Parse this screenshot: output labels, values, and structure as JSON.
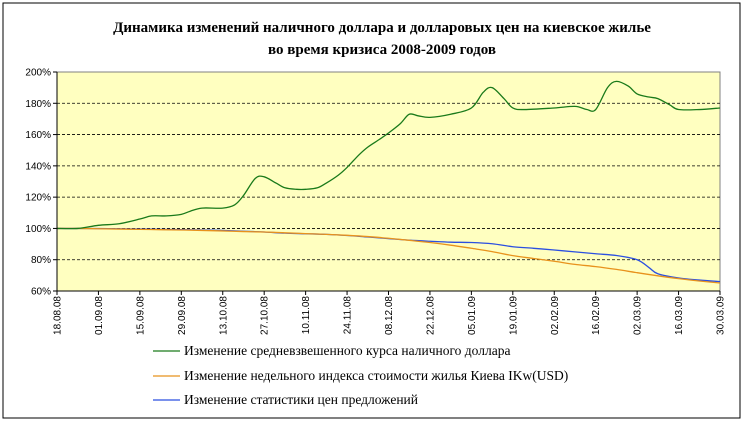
{
  "chart_data": {
    "type": "line",
    "title_line1": "Динамика изменений наличного доллара и долларовых цен на киевское жилье",
    "title_line2": "во время  кризиса 2008-2009 годов",
    "ylim": [
      0.6,
      2.0
    ],
    "y_ticks": [
      0.6,
      0.8,
      1.0,
      1.2,
      1.4,
      1.6,
      1.8,
      2.0
    ],
    "y_tick_labels": [
      "60%",
      "80%",
      "100%",
      "120%",
      "140%",
      "160%",
      "180%",
      "200%"
    ],
    "x_tick_labels": [
      "18.08.08",
      "01.09.08",
      "15.09.08",
      "29.09.08",
      "13.10.08",
      "27.10.08",
      "10.11.08",
      "24.11.08",
      "08.12.08",
      "22.12.08",
      "05.01.09",
      "19.01.09",
      "02.02.09",
      "16.02.09",
      "02.03.09",
      "16.03.09",
      "30.03.09"
    ],
    "grid": "horizontal dashed",
    "plot_background": "#ffffc0",
    "legend_position": "bottom",
    "series": [
      {
        "name": "Изменение средневзвешенного  курса наличного доллара",
        "color": "#1a7a1a",
        "x": [
          "2008-08-18",
          "2008-08-25",
          "2008-09-01",
          "2008-09-08",
          "2008-09-15",
          "2008-09-19",
          "2008-09-24",
          "2008-09-29",
          "2008-10-02",
          "2008-10-06",
          "2008-10-13",
          "2008-10-17",
          "2008-10-20",
          "2008-10-24",
          "2008-10-27",
          "2008-10-31",
          "2008-11-03",
          "2008-11-07",
          "2008-11-10",
          "2008-11-14",
          "2008-11-17",
          "2008-11-21",
          "2008-11-24",
          "2008-11-28",
          "2008-12-01",
          "2008-12-05",
          "2008-12-08",
          "2008-12-12",
          "2008-12-15",
          "2008-12-18",
          "2008-12-22",
          "2008-12-29",
          "2009-01-05",
          "2009-01-09",
          "2009-01-12",
          "2009-01-16",
          "2009-01-19",
          "2009-01-23",
          "2009-02-02",
          "2009-02-09",
          "2009-02-13",
          "2009-02-16",
          "2009-02-20",
          "2009-02-23",
          "2009-02-27",
          "2009-03-02",
          "2009-03-06",
          "2009-03-09",
          "2009-03-13",
          "2009-03-16",
          "2009-03-23",
          "2009-03-30"
        ],
        "values": [
          1.0,
          1.0,
          1.02,
          1.03,
          1.06,
          1.08,
          1.08,
          1.09,
          1.11,
          1.13,
          1.13,
          1.15,
          1.21,
          1.32,
          1.33,
          1.29,
          1.26,
          1.25,
          1.25,
          1.26,
          1.29,
          1.34,
          1.39,
          1.47,
          1.52,
          1.57,
          1.61,
          1.67,
          1.73,
          1.72,
          1.71,
          1.73,
          1.77,
          1.87,
          1.9,
          1.83,
          1.77,
          1.76,
          1.77,
          1.78,
          1.76,
          1.76,
          1.9,
          1.94,
          1.91,
          1.86,
          1.84,
          1.83,
          1.79,
          1.76,
          1.76,
          1.77
        ]
      },
      {
        "name": "Изменение недельного индекса стоимости жилья Киева IKw(USD)",
        "color": "#e8921c",
        "x": [
          "2008-08-18",
          "2008-08-25",
          "2008-09-01",
          "2008-09-08",
          "2008-09-15",
          "2008-09-22",
          "2008-09-29",
          "2008-10-06",
          "2008-10-13",
          "2008-10-20",
          "2008-10-27",
          "2008-11-03",
          "2008-11-10",
          "2008-11-17",
          "2008-11-24",
          "2008-12-01",
          "2008-12-08",
          "2008-12-15",
          "2008-12-22",
          "2008-12-29",
          "2009-01-05",
          "2009-01-12",
          "2009-01-19",
          "2009-01-26",
          "2009-02-02",
          "2009-02-09",
          "2009-02-16",
          "2009-02-23",
          "2009-03-02",
          "2009-03-09",
          "2009-03-16",
          "2009-03-23",
          "2009-03-30"
        ],
        "values": [
          1.0,
          1.0,
          0.998,
          0.996,
          0.994,
          0.992,
          0.99,
          0.987,
          0.984,
          0.98,
          0.977,
          0.972,
          0.967,
          0.962,
          0.956,
          0.948,
          0.937,
          0.924,
          0.91,
          0.893,
          0.873,
          0.852,
          0.826,
          0.808,
          0.79,
          0.77,
          0.756,
          0.738,
          0.717,
          0.697,
          0.679,
          0.664,
          0.651
        ]
      },
      {
        "name": "Изменение статистики цен предложений",
        "color": "#2b4fe0",
        "x": [
          "2008-08-18",
          "2008-08-25",
          "2008-09-01",
          "2008-09-08",
          "2008-09-15",
          "2008-09-22",
          "2008-09-29",
          "2008-10-06",
          "2008-10-13",
          "2008-10-20",
          "2008-10-27",
          "2008-11-03",
          "2008-11-10",
          "2008-11-17",
          "2008-11-24",
          "2008-12-01",
          "2008-12-08",
          "2008-12-15",
          "2008-12-22",
          "2008-12-29",
          "2009-01-05",
          "2009-01-12",
          "2009-01-19",
          "2009-01-26",
          "2009-02-02",
          "2009-02-09",
          "2009-02-16",
          "2009-02-23",
          "2009-03-02",
          "2009-03-06",
          "2009-03-09",
          "2009-03-16",
          "2009-03-23",
          "2009-03-30"
        ],
        "values": [
          1.0,
          1.0,
          0.999,
          0.998,
          0.996,
          0.994,
          0.992,
          0.99,
          0.987,
          0.982,
          0.977,
          0.97,
          0.966,
          0.962,
          0.955,
          0.945,
          0.935,
          0.925,
          0.918,
          0.912,
          0.91,
          0.902,
          0.883,
          0.873,
          0.862,
          0.85,
          0.838,
          0.827,
          0.8,
          0.75,
          0.71,
          0.683,
          0.67,
          0.66
        ]
      }
    ]
  }
}
